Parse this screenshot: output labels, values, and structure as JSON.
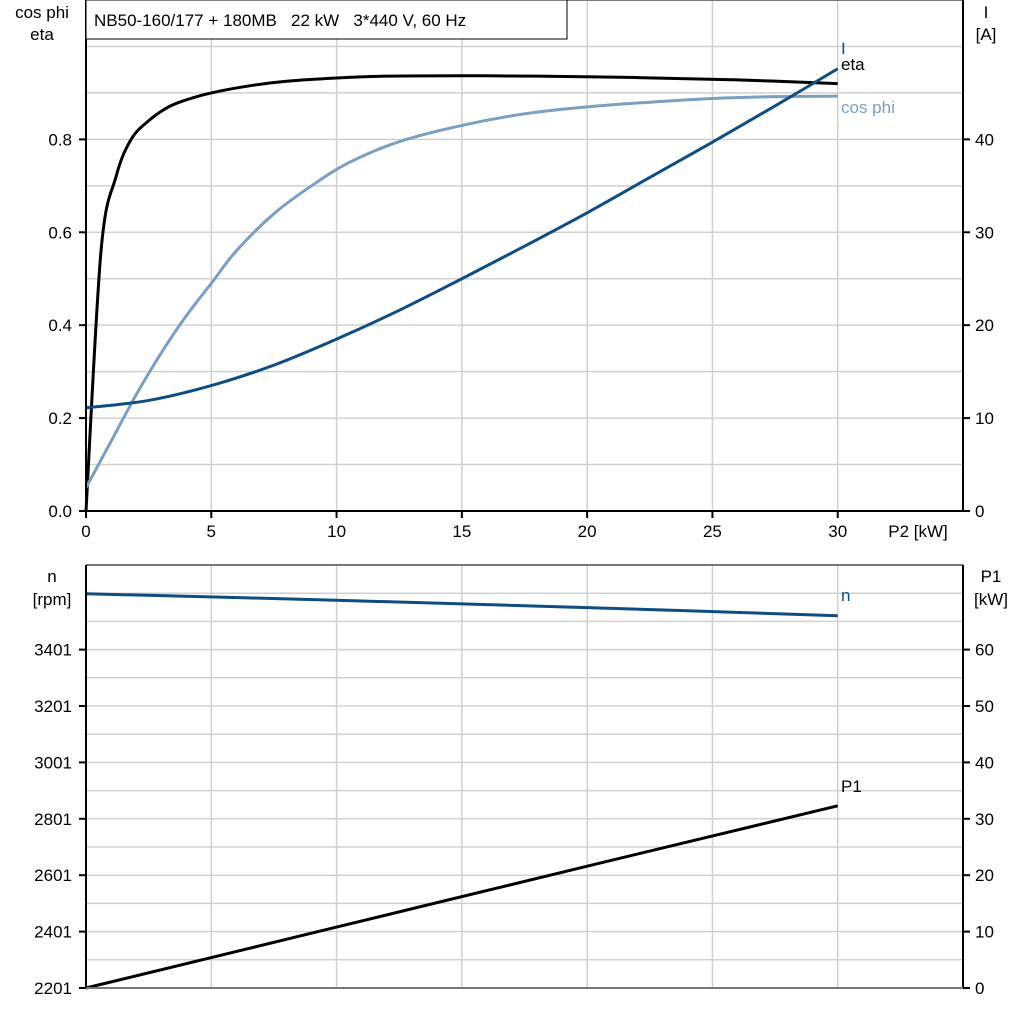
{
  "chart_data": [
    {
      "type": "line",
      "title": "NB50-160/177 + 180MB   22 kW   3*440 V, 60 Hz",
      "xlabel": "P2 [kW]",
      "ylabel_left": [
        "cos phi",
        "eta"
      ],
      "ylabel_right": [
        "I",
        "[A]"
      ],
      "xlim": [
        0,
        35
      ],
      "ylim_left": [
        0,
        1.1
      ],
      "ylim_right": [
        0,
        55
      ],
      "x_ticks": [
        "0",
        "5",
        "10",
        "15",
        "20",
        "25",
        "30"
      ],
      "y_ticks_left": [
        "0.0",
        "0.2",
        "0.4",
        "0.6",
        "0.8"
      ],
      "y_ticks_right": [
        "0",
        "10",
        "20",
        "30",
        "40"
      ],
      "grid": true,
      "series": [
        {
          "name": "eta",
          "axis": "left",
          "color": "#000000",
          "x": [
            0,
            0.6,
            1.2,
            1.8,
            2.5,
            3.3,
            4,
            5,
            6.5,
            8,
            10,
            12,
            15,
            18,
            22,
            26,
            30
          ],
          "y": [
            0,
            0.56,
            0.72,
            0.8,
            0.84,
            0.87,
            0.885,
            0.9,
            0.915,
            0.925,
            0.932,
            0.936,
            0.937,
            0.936,
            0.933,
            0.928,
            0.92
          ]
        },
        {
          "name": "cos phi",
          "axis": "left",
          "color": "#7a9fc0",
          "x": [
            0,
            1,
            2,
            3,
            4,
            5,
            6,
            7.5,
            9,
            10.5,
            12.5,
            15,
            17.5,
            20,
            22.5,
            25,
            27.5,
            30
          ],
          "y": [
            0.05,
            0.15,
            0.25,
            0.34,
            0.42,
            0.49,
            0.56,
            0.64,
            0.7,
            0.75,
            0.795,
            0.83,
            0.855,
            0.87,
            0.88,
            0.888,
            0.892,
            0.893
          ]
        },
        {
          "name": "I",
          "axis": "right",
          "color": "#0f4c81",
          "x": [
            0,
            2.5,
            5,
            7.5,
            10,
            12.5,
            15,
            17.5,
            20,
            22.5,
            25,
            27.5,
            30
          ],
          "y": [
            11.1,
            11.9,
            13.5,
            15.7,
            18.5,
            21.6,
            25,
            28.5,
            32.1,
            35.9,
            39.7,
            43.6,
            47.6
          ]
        }
      ]
    },
    {
      "type": "line",
      "xlim": [
        0,
        35
      ],
      "ylabel_left": [
        "n",
        "[rpm]"
      ],
      "ylabel_right": [
        "P1",
        "[kW]"
      ],
      "ylim_left": [
        2201,
        3701
      ],
      "ylim_right": [
        0,
        75
      ],
      "y_ticks_left": [
        "2201",
        "2401",
        "2601",
        "2801",
        "3001",
        "3201",
        "3401"
      ],
      "y_ticks_right": [
        "0",
        "10",
        "20",
        "30",
        "40",
        "50",
        "60"
      ],
      "grid": true,
      "series": [
        {
          "name": "n",
          "axis": "left",
          "color": "#0f4c81",
          "x": [
            0,
            10,
            20,
            30
          ],
          "y": [
            3599,
            3576,
            3550,
            3521
          ]
        },
        {
          "name": "P1",
          "axis": "right",
          "color": "#000000",
          "x": [
            0,
            10,
            20,
            30
          ],
          "y": [
            0,
            10.8,
            21.6,
            32.3
          ]
        }
      ]
    }
  ]
}
